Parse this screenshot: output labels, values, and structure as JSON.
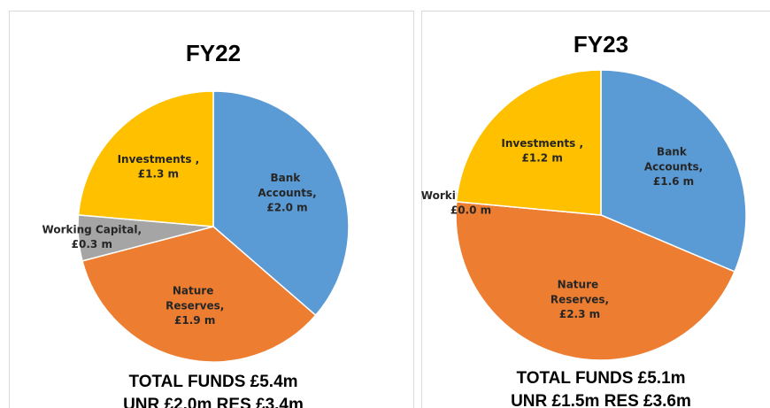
{
  "chart_data": [
    {
      "type": "pie",
      "title": "FY22",
      "categories": [
        "Bank Accounts,",
        "Nature Reserves,",
        "Working Capital,",
        "Investments ,"
      ],
      "values": [
        2.0,
        1.9,
        0.3,
        1.3
      ],
      "value_labels": [
        "£2.0 m",
        "£1.9 m",
        "£0.3 m",
        "£1.3 m"
      ],
      "colors": [
        "#5b9bd5",
        "#ed7d31",
        "#a5a5a5",
        "#ffc000"
      ],
      "annotations": [
        "TOTAL FUNDS £5.4m",
        "UNR £2.0m RES £3.4m"
      ]
    },
    {
      "type": "pie",
      "title": "FY23",
      "categories": [
        "Bank Accounts,",
        "Nature Reserves,",
        "Working Capital,",
        "Investments ,"
      ],
      "values": [
        1.6,
        2.3,
        0.0,
        1.2
      ],
      "value_labels": [
        "£1.6 m",
        "£2.3 m",
        "£0.0 m",
        "£1.2 m"
      ],
      "colors": [
        "#5b9bd5",
        "#ed7d31",
        "#a5a5a5",
        "#ffc000"
      ],
      "annotations": [
        "TOTAL FUNDS £5.1m",
        "UNR £1.5m RES £3.6m"
      ]
    }
  ]
}
